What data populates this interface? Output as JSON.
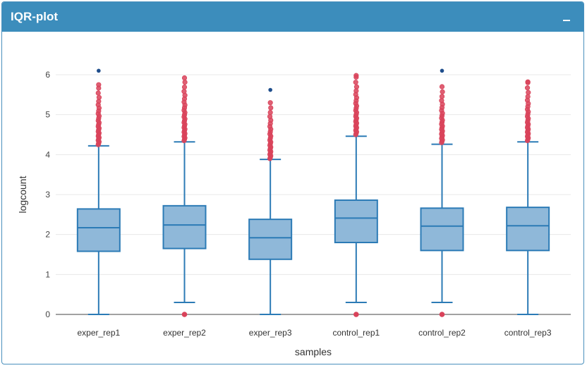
{
  "panel": {
    "title": "IQR-plot"
  },
  "icons": {
    "collapse": "minus-icon"
  },
  "colors": {
    "header": "#3c8dbc",
    "box_fill": "#8fb8d9",
    "box_stroke": "#2c7bb6",
    "outlier": "#d9435a",
    "extreme_point": "#1f4e8c"
  },
  "chart_data": {
    "type": "box",
    "xlabel": "samples",
    "ylabel": "logcount",
    "ylim": [
      0,
      6.2
    ],
    "yticks": [
      0,
      1,
      2,
      3,
      4,
      5,
      6
    ],
    "grid": true,
    "categories": [
      "exper_rep1",
      "exper_rep2",
      "exper_rep3",
      "control_rep1",
      "control_rep2",
      "control_rep3"
    ],
    "boxes": [
      {
        "name": "exper_rep1",
        "lower_whisker": 0.0,
        "q1": 1.58,
        "median": 2.17,
        "q3": 2.64,
        "upper_whisker": 4.22,
        "outlier_range": [
          4.25,
          5.75
        ],
        "zero_outlier": false,
        "top_point": 6.1
      },
      {
        "name": "exper_rep2",
        "lower_whisker": 0.3,
        "q1": 1.65,
        "median": 2.24,
        "q3": 2.72,
        "upper_whisker": 4.32,
        "outlier_range": [
          4.35,
          5.92
        ],
        "zero_outlier": true,
        "top_point": null
      },
      {
        "name": "exper_rep3",
        "lower_whisker": 0.0,
        "q1": 1.38,
        "median": 1.92,
        "q3": 2.38,
        "upper_whisker": 3.88,
        "outlier_range": [
          3.9,
          5.3
        ],
        "zero_outlier": false,
        "top_point": 5.62
      },
      {
        "name": "control_rep1",
        "lower_whisker": 0.3,
        "q1": 1.8,
        "median": 2.41,
        "q3": 2.86,
        "upper_whisker": 4.46,
        "outlier_range": [
          4.5,
          5.98
        ],
        "zero_outlier": true,
        "top_point": null
      },
      {
        "name": "control_rep2",
        "lower_whisker": 0.3,
        "q1": 1.6,
        "median": 2.21,
        "q3": 2.66,
        "upper_whisker": 4.26,
        "outlier_range": [
          4.3,
          5.7
        ],
        "zero_outlier": true,
        "top_point": 6.1
      },
      {
        "name": "control_rep3",
        "lower_whisker": 0.0,
        "q1": 1.6,
        "median": 2.22,
        "q3": 2.68,
        "upper_whisker": 4.32,
        "outlier_range": [
          4.35,
          5.82
        ],
        "zero_outlier": false,
        "top_point": null
      }
    ]
  }
}
